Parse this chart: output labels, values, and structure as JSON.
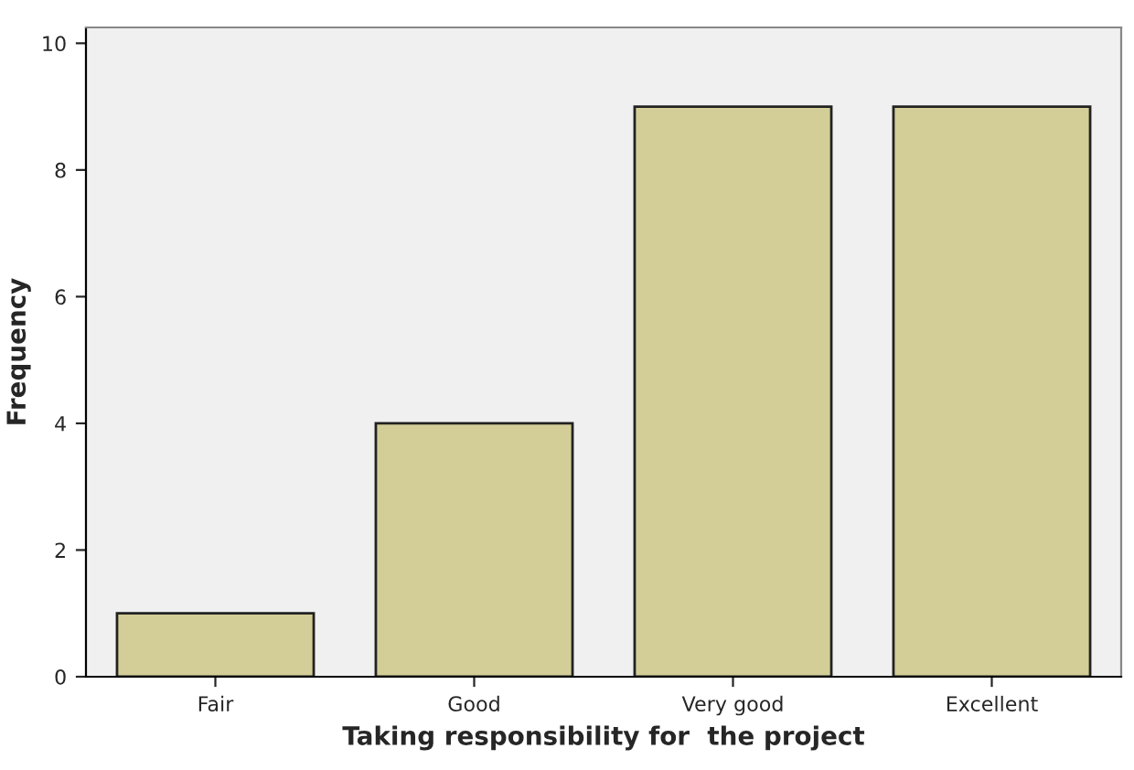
{
  "chart_data": {
    "type": "bar",
    "xlabel": "Taking responsibility for  the project",
    "ylabel": "Frequency",
    "categories": [
      "Fair",
      "Good",
      "Very good",
      "Excellent"
    ],
    "values": [
      1,
      4,
      9,
      9
    ],
    "color": "#d3ce97",
    "ylim": [
      0,
      10.25
    ],
    "yticks": [
      0,
      2,
      4,
      6,
      8,
      10
    ],
    "grid": false
  }
}
